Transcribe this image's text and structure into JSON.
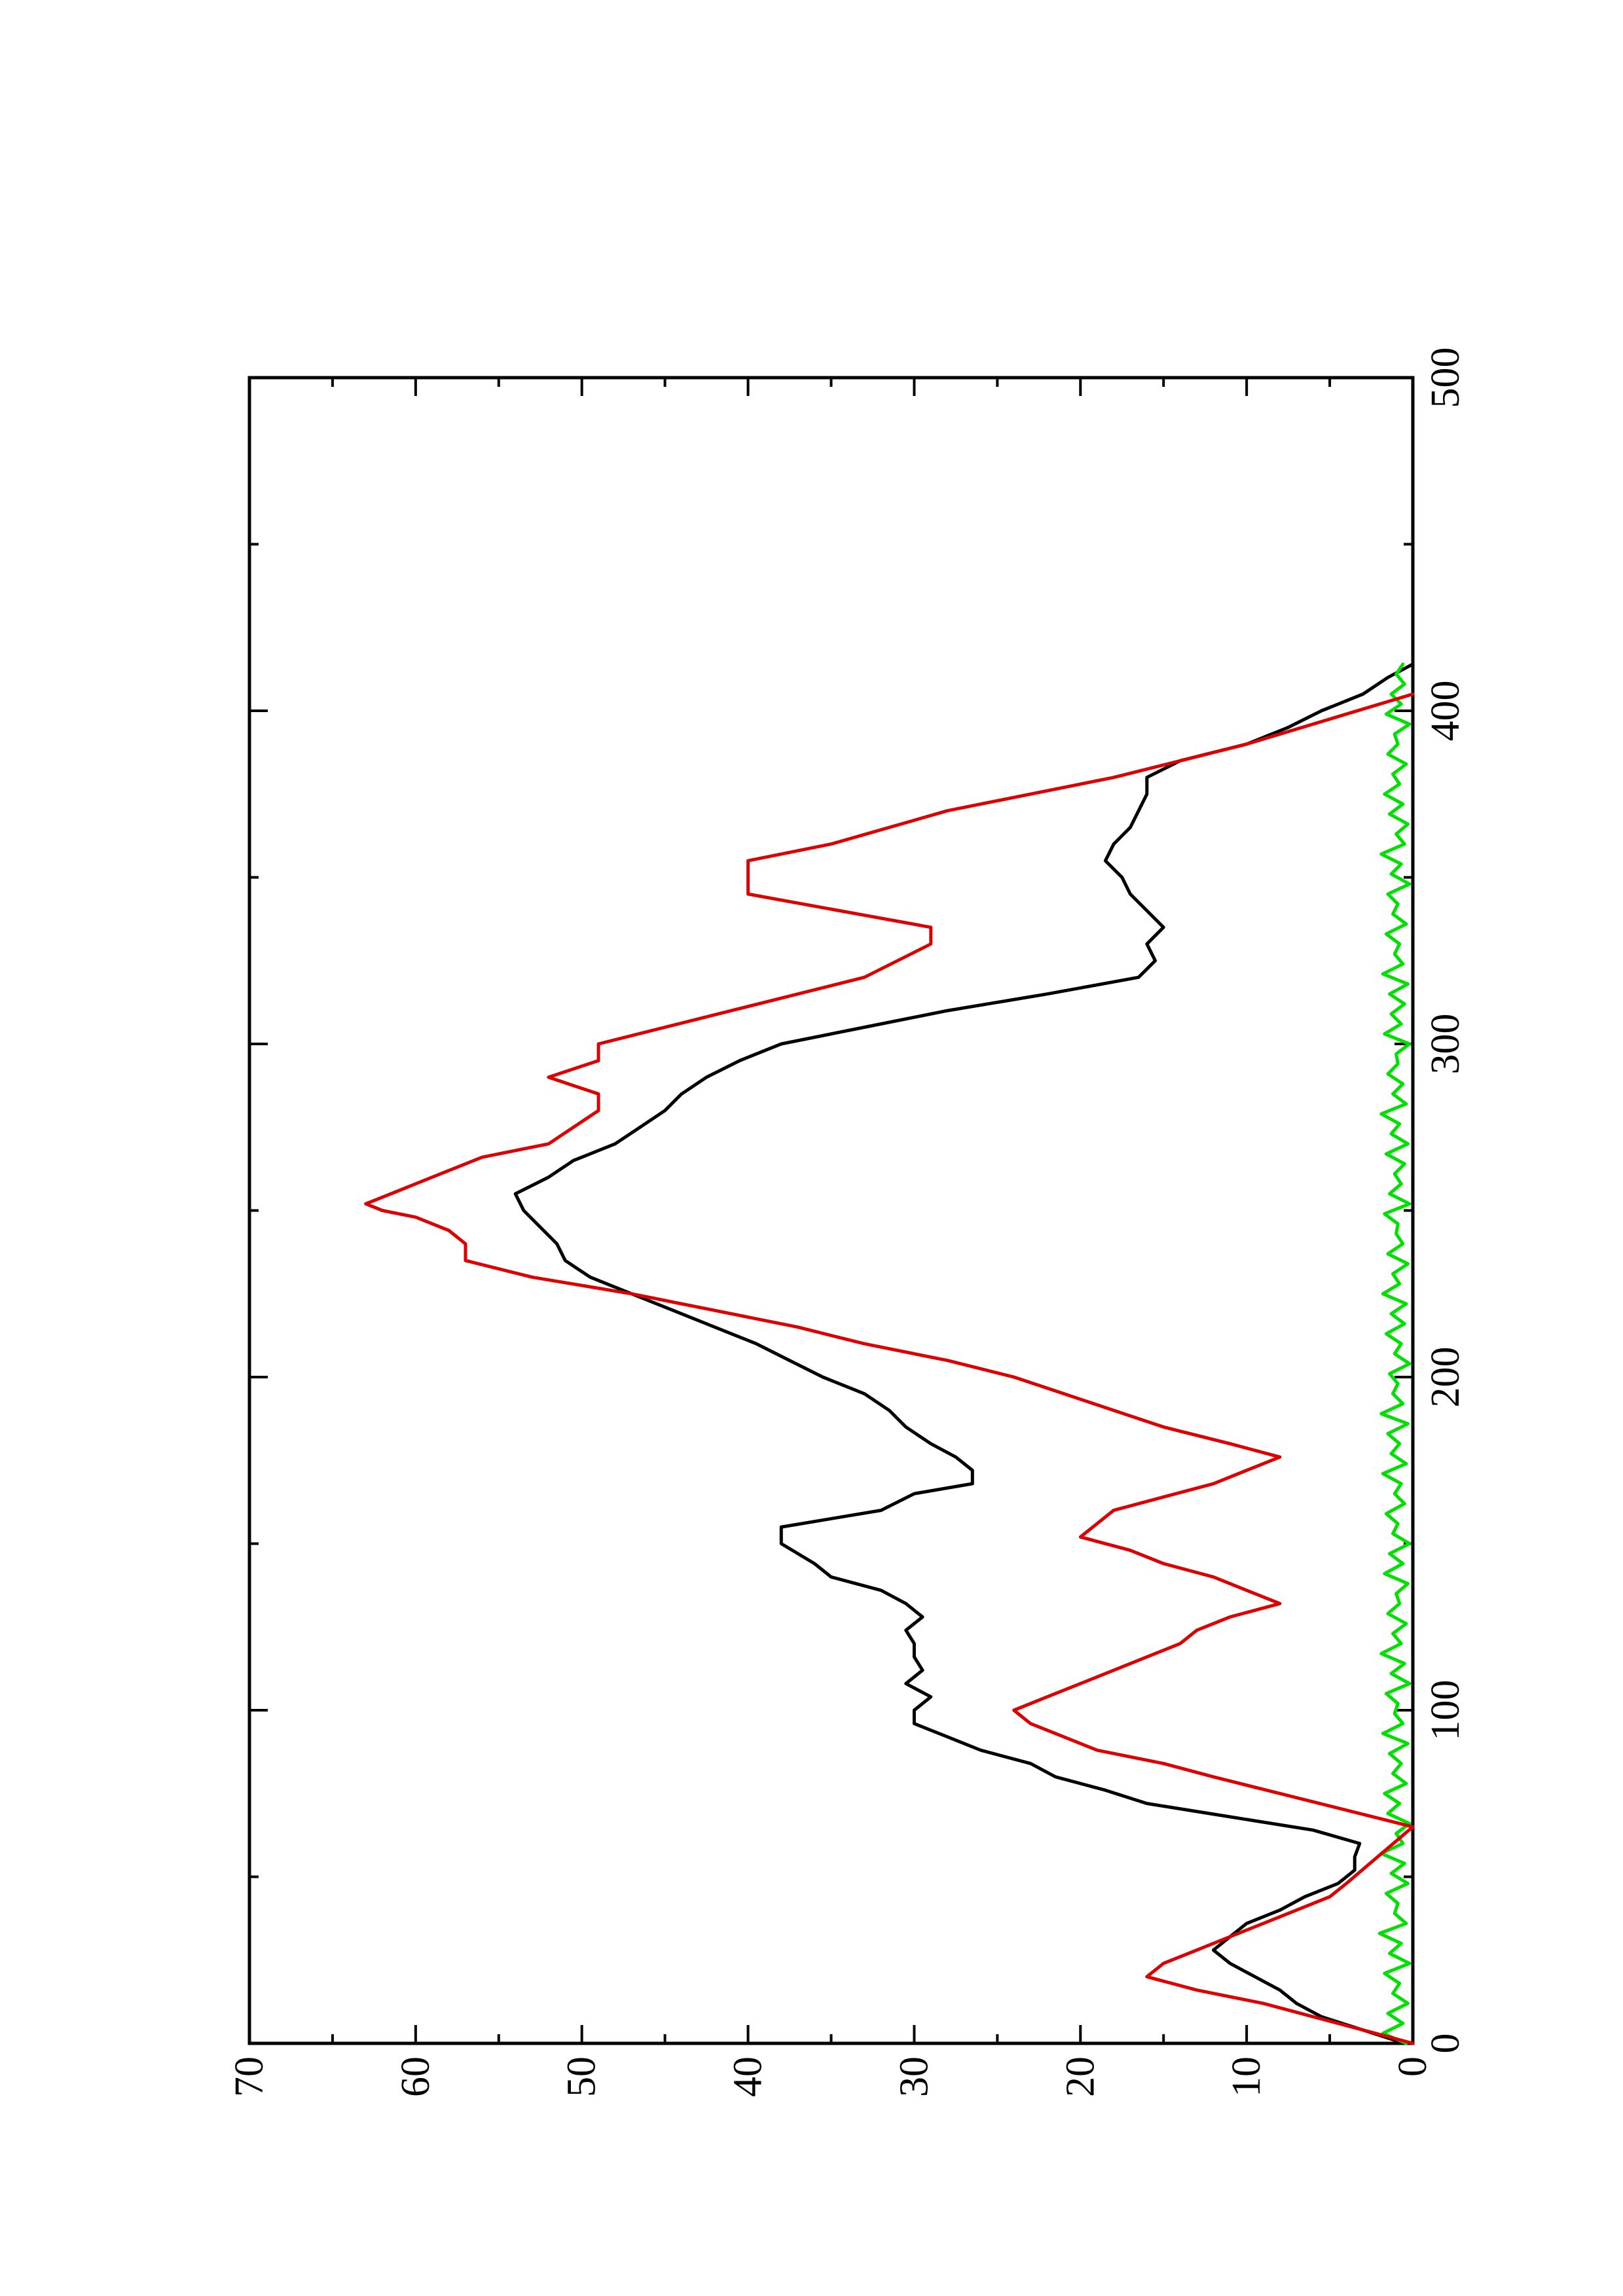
{
  "chart_data": {
    "type": "line",
    "orientation": "rotated-90-counterclockwise",
    "title": "",
    "xlabel": "",
    "ylabel": "",
    "xlim": [
      0,
      500
    ],
    "ylim": [
      0,
      70
    ],
    "x_ticks": [
      0,
      100,
      200,
      300,
      400,
      500
    ],
    "y_ticks": [
      0,
      10,
      20,
      30,
      40,
      50,
      60,
      70
    ],
    "x_minor_step": 50,
    "y_minor_step": 5,
    "grid": false,
    "legend": "none",
    "colors": {
      "black_series": "#000000",
      "red_series": "#dd0000",
      "green_series": "#00e000"
    },
    "series": [
      {
        "color": "#000000",
        "shape": "smooth",
        "x": [
          0,
          4,
          8,
          12,
          16,
          20,
          24,
          28,
          32,
          36,
          40,
          44,
          48,
          52,
          56,
          60,
          64,
          68,
          72,
          76,
          80,
          84,
          88,
          92,
          96,
          100,
          104,
          108,
          112,
          116,
          120,
          124,
          128,
          132,
          136,
          140,
          144,
          150,
          155,
          160,
          165,
          168,
          172,
          176,
          180,
          185,
          190,
          195,
          200,
          205,
          210,
          215,
          220,
          225,
          230,
          235,
          240,
          245,
          250,
          255,
          260,
          265,
          270,
          275,
          280,
          285,
          290,
          295,
          300,
          305,
          310,
          315,
          320,
          325,
          330,
          335,
          340,
          345,
          350,
          355,
          360,
          365,
          370,
          375,
          380,
          385,
          390,
          395,
          400,
          405,
          410,
          414
        ],
        "values": [
          0.5,
          3,
          5.5,
          7,
          8,
          9.5,
          11,
          12,
          11,
          10,
          8,
          6.5,
          4.5,
          3.5,
          3.5,
          3.2,
          6,
          11,
          16,
          18.5,
          21.5,
          23,
          26,
          28,
          30,
          30,
          29,
          30.5,
          29.5,
          30,
          30,
          30.5,
          29.5,
          30.5,
          32,
          35,
          36,
          38,
          38,
          32,
          30,
          26.5,
          26.5,
          27.5,
          29,
          30.5,
          31.5,
          33,
          35.5,
          37.5,
          39.5,
          42,
          44.5,
          47,
          49.5,
          51,
          51.5,
          52.5,
          53.5,
          54,
          52,
          50.5,
          48,
          46.5,
          45,
          44,
          42.5,
          40.5,
          38,
          33,
          28,
          22,
          16.5,
          15.5,
          16,
          15,
          16,
          17,
          17.5,
          18.5,
          18,
          17,
          16.5,
          16,
          16,
          14,
          10,
          7.5,
          5.5,
          3,
          1.5,
          0
        ]
      },
      {
        "color": "#dd0000",
        "shape": "piecewise-linear",
        "x": [
          0,
          4,
          8,
          12,
          16,
          20,
          24,
          28,
          32,
          36,
          40,
          44,
          48,
          65,
          80,
          84,
          88,
          92,
          96,
          100,
          104,
          108,
          112,
          116,
          120,
          124,
          128,
          132,
          136,
          140,
          144,
          148,
          152,
          160,
          164,
          168,
          172,
          176,
          180,
          185,
          190,
          195,
          200,
          205,
          210,
          215,
          220,
          225,
          230,
          235,
          240,
          244,
          248,
          250,
          252,
          256,
          260,
          266,
          270,
          280,
          285,
          290,
          295,
          300,
          310,
          320,
          330,
          335,
          345,
          355,
          360,
          370,
          380,
          390,
          405
        ],
        "values": [
          0,
          3,
          6,
          9,
          13,
          16,
          15,
          13,
          11,
          9,
          7,
          5,
          4,
          0,
          12,
          15,
          19,
          21,
          23,
          24,
          22,
          20,
          18,
          16,
          14,
          13,
          11,
          8,
          10,
          12,
          15,
          17,
          20,
          18,
          15,
          12,
          10,
          8,
          11,
          15,
          18,
          21,
          24,
          28,
          33,
          37,
          42,
          47,
          53,
          57,
          57,
          58,
          60,
          62,
          63,
          61,
          59,
          56,
          52,
          49,
          49,
          52,
          49,
          49,
          41,
          33,
          29,
          29,
          40,
          40,
          35,
          28,
          18,
          10,
          0
        ]
      },
      {
        "color": "#00e000",
        "shape": "noise",
        "x": [
          0,
          3,
          6,
          9,
          12,
          15,
          18,
          21,
          24,
          27,
          30,
          33,
          36,
          39,
          42,
          45,
          48,
          51,
          54,
          57,
          60,
          63,
          66,
          69,
          72,
          75,
          78,
          81,
          84,
          87,
          90,
          93,
          96,
          99,
          102,
          105,
          108,
          111,
          114,
          117,
          120,
          123,
          126,
          129,
          132,
          135,
          138,
          141,
          144,
          147,
          150,
          153,
          156,
          159,
          162,
          165,
          168,
          171,
          174,
          177,
          180,
          183,
          186,
          189,
          192,
          195,
          198,
          201,
          204,
          207,
          210,
          213,
          216,
          219,
          222,
          225,
          228,
          231,
          234,
          237,
          240,
          243,
          246,
          249,
          252,
          255,
          258,
          261,
          264,
          267,
          270,
          273,
          276,
          279,
          282,
          285,
          288,
          291,
          294,
          297,
          300,
          303,
          306,
          309,
          312,
          315,
          318,
          321,
          324,
          327,
          330,
          333,
          336,
          339,
          342,
          345,
          348,
          351,
          354,
          357,
          360,
          363,
          366,
          369,
          372,
          375,
          378,
          381,
          384,
          387,
          390,
          393,
          396,
          399,
          402,
          405,
          408,
          411,
          414
        ],
        "values": [
          0.4,
          1.8,
          0.6,
          1.5,
          0.3,
          1.2,
          0.8,
          1.7,
          0.2,
          1.4,
          0.7,
          2.0,
          0.4,
          1.1,
          0.9,
          1.6,
          0.3,
          1.3,
          0.5,
          1.9,
          0.6,
          1.0,
          0.2,
          1.5,
          0.8,
          1.7,
          0.4,
          1.2,
          0.7,
          1.4,
          0.3,
          1.8,
          0.6,
          1.1,
          0.9,
          1.6,
          0.2,
          1.3,
          0.5,
          1.9,
          0.7,
          1.2,
          0.4,
          1.5,
          0.8,
          1.0,
          0.3,
          1.7,
          0.6,
          1.4,
          0.2,
          1.2,
          0.9,
          1.6,
          0.5,
          1.1,
          0.7,
          1.8,
          0.4,
          1.3,
          0.8,
          1.5,
          0.3,
          1.9,
          0.6,
          1.2,
          0.9,
          1.4,
          0.2,
          1.1,
          0.7,
          1.6,
          0.5,
          1.3,
          0.4,
          1.8,
          0.8,
          1.2,
          0.3,
          1.5,
          0.6,
          1.0,
          0.9,
          1.7,
          0.2,
          1.4,
          0.7,
          1.1,
          0.5,
          1.6,
          0.3,
          1.3,
          0.8,
          1.9,
          0.4,
          1.2,
          0.6,
          1.5,
          0.9,
          1.0,
          0.2,
          1.7,
          0.7,
          1.3,
          0.5,
          1.4,
          0.3,
          1.8,
          0.6,
          1.1,
          0.8,
          1.6,
          0.4,
          1.2,
          0.9,
          1.5,
          0.2,
          1.3,
          0.7,
          1.9,
          0.5,
          1.0,
          0.3,
          1.4,
          0.6,
          1.7,
          0.8,
          1.2,
          0.4,
          1.5,
          0.9,
          1.1,
          0.2,
          1.6,
          0.7,
          1.3,
          0.5,
          1.0,
          0.6
        ]
      }
    ]
  }
}
